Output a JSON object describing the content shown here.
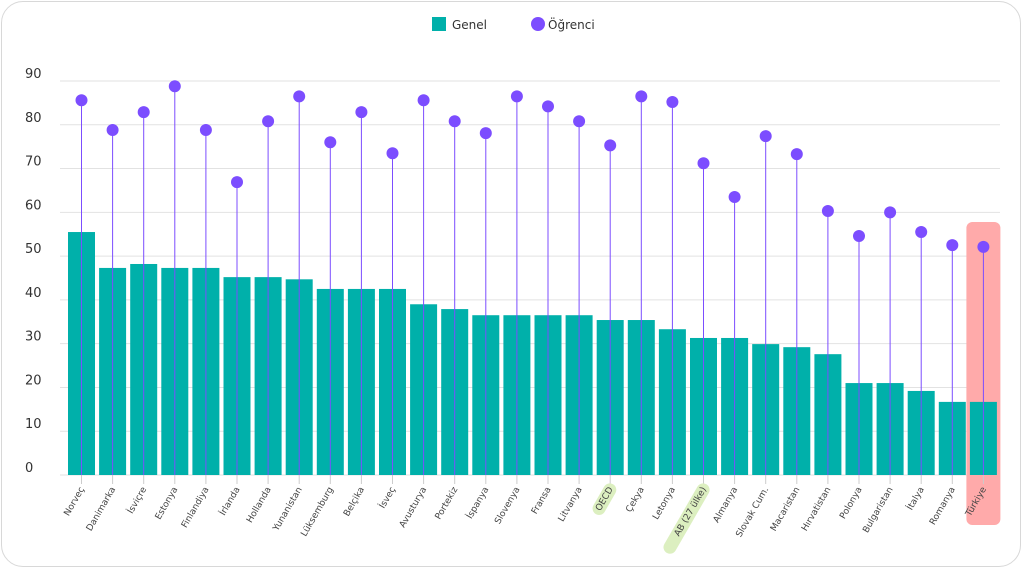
{
  "chart_data": {
    "type": "bar",
    "categories": [
      "Norveç",
      "Danimarka",
      "İsviçre",
      "Estonya",
      "Finlandiya",
      "İrlanda",
      "Hollanda",
      "Yunanistan",
      "Lüksemburg",
      "Belçika",
      "İsveç",
      "Avusturya",
      "Portekiz",
      "İspanya",
      "Slovenya",
      "Fransa",
      "Litvanya",
      "OECD",
      "Çekya",
      "Letonya",
      "AB (27 ülke)",
      "Almanya",
      "Slovak Cum.",
      "Macaristan",
      "Hırvatistan",
      "Polonya",
      "Bulgaristan",
      "İtalya",
      "Romanya",
      "Türkiye"
    ],
    "series": [
      {
        "name": "Genel",
        "kind": "bar",
        "color": "#00b0aa",
        "values": [
          55.5,
          47.3,
          48.2,
          47.3,
          47.3,
          45.2,
          45.2,
          44.7,
          42.5,
          42.5,
          42.5,
          39.0,
          37.9,
          36.5,
          36.5,
          36.5,
          36.5,
          35.4,
          35.4,
          33.3,
          31.3,
          31.3,
          29.9,
          29.2,
          27.6,
          21.0,
          21.0,
          19.2,
          16.7,
          16.7
        ]
      },
      {
        "name": "Öğrenci",
        "kind": "dot",
        "color": "#7c4dff",
        "values": [
          85.6,
          78.8,
          82.9,
          88.8,
          78.8,
          66.9,
          80.8,
          86.5,
          76.0,
          82.9,
          73.5,
          85.6,
          80.8,
          78.1,
          86.5,
          84.2,
          80.8,
          75.3,
          86.5,
          85.2,
          71.2,
          63.5,
          77.4,
          73.3,
          60.3,
          54.6,
          60.0,
          55.5,
          52.5,
          52.1
        ]
      }
    ],
    "yticks": [
      0,
      10,
      20,
      30,
      40,
      50,
      60,
      70,
      80,
      90
    ],
    "ylim": [
      0,
      90
    ],
    "grid": true,
    "legend_position": "top-center",
    "highlight": {
      "green": [
        "OECD",
        "AB (27 ülke)"
      ],
      "green_color": "#dcefc0",
      "red": [
        "Türkiye"
      ],
      "red_color": "#ffaaaa"
    }
  }
}
